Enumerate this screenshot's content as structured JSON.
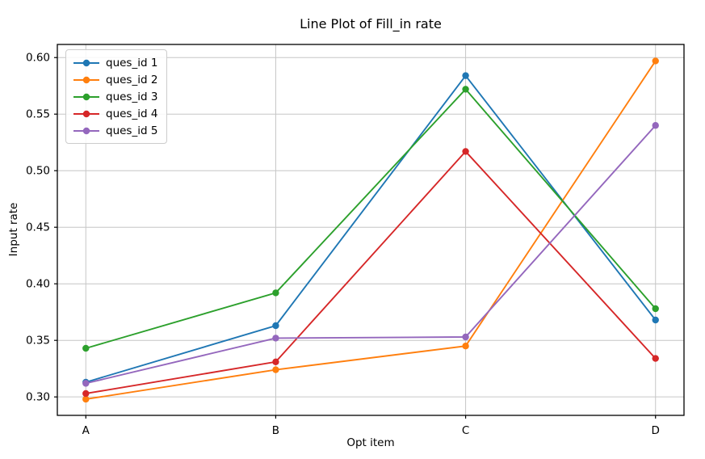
{
  "chart_data": {
    "type": "line",
    "title": "Line Plot of Fill_in rate",
    "xlabel": "Opt item",
    "ylabel": "Input rate",
    "categories": [
      "A",
      "B",
      "C",
      "D"
    ],
    "series": [
      {
        "name": "ques_id 1",
        "color": "#1f77b4",
        "values": [
          0.313,
          0.363,
          0.584,
          0.368
        ]
      },
      {
        "name": "ques_id 2",
        "color": "#ff7f0e",
        "values": [
          0.298,
          0.324,
          0.345,
          0.597
        ]
      },
      {
        "name": "ques_id 3",
        "color": "#2ca02c",
        "values": [
          0.343,
          0.392,
          0.572,
          0.378
        ]
      },
      {
        "name": "ques_id 4",
        "color": "#d62728",
        "values": [
          0.303,
          0.331,
          0.517,
          0.334
        ]
      },
      {
        "name": "ques_id 5",
        "color": "#9467bd",
        "values": [
          0.312,
          0.352,
          0.353,
          0.54
        ]
      }
    ],
    "yticks": [
      "0.30",
      "0.35",
      "0.40",
      "0.45",
      "0.50",
      "0.55",
      "0.60"
    ],
    "ylim": [
      0.2837,
      0.6116
    ],
    "grid": true,
    "legend_position": "upper left",
    "marker": "circle",
    "line_width": 1.9,
    "marker_radius": 4.2,
    "grid_color": "#c6c6c6",
    "spine_color": "#000000",
    "text_color": "#000000",
    "background_color": "#ffffff"
  }
}
